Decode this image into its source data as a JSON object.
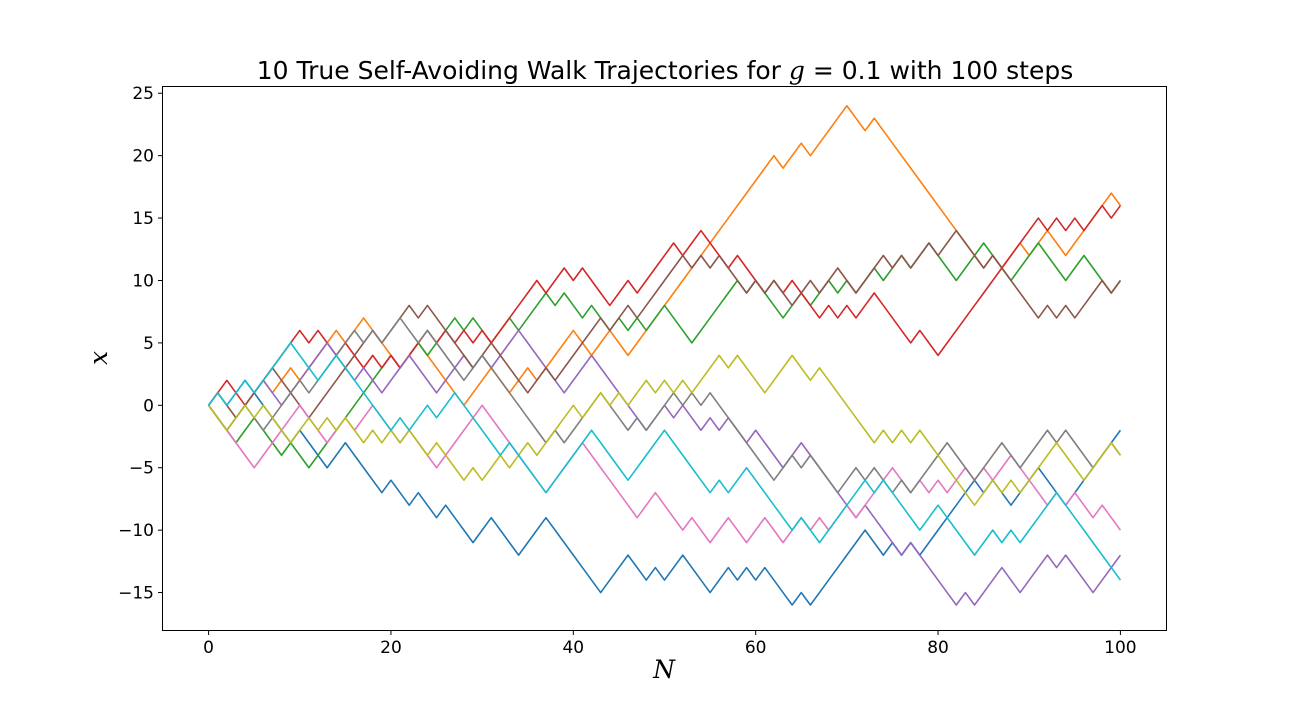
{
  "chart_data": {
    "type": "line",
    "title_prefix": "10 True Self-Avoiding Walk Trajectories for ",
    "title_symbol": "g",
    "title_suffix": " = 0.1 with 100 steps",
    "xlabel": "N",
    "ylabel": "x",
    "xlim": [
      -5,
      105
    ],
    "ylim": [
      -18,
      25.5
    ],
    "xticks": [
      0,
      20,
      40,
      60,
      80,
      100
    ],
    "yticks": [
      -15,
      -10,
      -5,
      0,
      5,
      10,
      15,
      20,
      25
    ],
    "grid": false,
    "legend": "none",
    "x": [
      0,
      1,
      2,
      3,
      4,
      5,
      6,
      7,
      8,
      9,
      10,
      11,
      12,
      13,
      14,
      15,
      16,
      17,
      18,
      19,
      20,
      21,
      22,
      23,
      24,
      25,
      26,
      27,
      28,
      29,
      30,
      31,
      32,
      33,
      34,
      35,
      36,
      37,
      38,
      39,
      40,
      41,
      42,
      43,
      44,
      45,
      46,
      47,
      48,
      49,
      50,
      51,
      52,
      53,
      54,
      55,
      56,
      57,
      58,
      59,
      60,
      61,
      62,
      63,
      64,
      65,
      66,
      67,
      68,
      69,
      70,
      71,
      72,
      73,
      74,
      75,
      76,
      77,
      78,
      79,
      80,
      81,
      82,
      83,
      84,
      85,
      86,
      87,
      88,
      89,
      90,
      91,
      92,
      93,
      94,
      95,
      96,
      97,
      98,
      99,
      100
    ],
    "series": [
      {
        "color": "#1f77b4",
        "values": [
          0,
          1,
          0,
          1,
          2,
          1,
          0,
          -1,
          -2,
          -3,
          -2,
          -3,
          -4,
          -5,
          -4,
          -3,
          -4,
          -5,
          -6,
          -7,
          -6,
          -7,
          -8,
          -7,
          -8,
          -9,
          -8,
          -9,
          -10,
          -11,
          -10,
          -9,
          -10,
          -11,
          -12,
          -11,
          -10,
          -9,
          -10,
          -11,
          -12,
          -13,
          -14,
          -15,
          -14,
          -13,
          -12,
          -13,
          -14,
          -13,
          -14,
          -13,
          -12,
          -13,
          -14,
          -15,
          -14,
          -13,
          -14,
          -13,
          -14,
          -13,
          -14,
          -15,
          -16,
          -15,
          -16,
          -15,
          -14,
          -13,
          -12,
          -11,
          -10,
          -11,
          -12,
          -11,
          -12,
          -11,
          -12,
          -11,
          -10,
          -9,
          -8,
          -7,
          -6,
          -7,
          -6,
          -7,
          -8,
          -7,
          -6,
          -5,
          -6,
          -7,
          -8,
          -7,
          -6,
          -5,
          -4,
          -3,
          -2
        ]
      },
      {
        "color": "#ff7f0e",
        "values": [
          0,
          1,
          0,
          -1,
          0,
          1,
          2,
          1,
          2,
          3,
          2,
          3,
          4,
          5,
          6,
          5,
          6,
          7,
          6,
          5,
          4,
          3,
          4,
          5,
          4,
          3,
          2,
          1,
          0,
          1,
          2,
          3,
          2,
          1,
          2,
          3,
          2,
          3,
          4,
          5,
          6,
          5,
          4,
          5,
          6,
          5,
          4,
          5,
          6,
          7,
          8,
          9,
          10,
          11,
          12,
          13,
          14,
          15,
          16,
          17,
          18,
          19,
          20,
          19,
          20,
          21,
          20,
          21,
          22,
          23,
          24,
          23,
          22,
          23,
          22,
          21,
          20,
          19,
          18,
          17,
          16,
          15,
          14,
          13,
          12,
          11,
          12,
          11,
          12,
          13,
          12,
          13,
          14,
          13,
          12,
          13,
          14,
          15,
          16,
          17,
          16
        ]
      },
      {
        "color": "#2ca02c",
        "values": [
          0,
          -1,
          -2,
          -3,
          -2,
          -1,
          -2,
          -3,
          -4,
          -3,
          -4,
          -5,
          -4,
          -3,
          -2,
          -1,
          0,
          1,
          2,
          3,
          4,
          3,
          4,
          5,
          4,
          5,
          6,
          7,
          6,
          7,
          6,
          5,
          6,
          7,
          6,
          7,
          8,
          9,
          8,
          9,
          8,
          7,
          8,
          7,
          6,
          7,
          6,
          7,
          6,
          7,
          8,
          7,
          6,
          5,
          6,
          7,
          8,
          9,
          10,
          9,
          10,
          9,
          8,
          7,
          8,
          9,
          8,
          9,
          10,
          9,
          10,
          9,
          10,
          11,
          10,
          11,
          12,
          11,
          12,
          13,
          12,
          11,
          10,
          11,
          12,
          13,
          12,
          11,
          10,
          11,
          12,
          13,
          12,
          11,
          10,
          11,
          12,
          11,
          10,
          9,
          10
        ]
      },
      {
        "color": "#d62728",
        "values": [
          0,
          1,
          2,
          1,
          0,
          1,
          2,
          3,
          4,
          5,
          6,
          5,
          6,
          5,
          4,
          5,
          4,
          3,
          4,
          3,
          4,
          3,
          4,
          5,
          6,
          5,
          6,
          5,
          6,
          5,
          6,
          5,
          6,
          7,
          8,
          9,
          10,
          9,
          10,
          11,
          10,
          11,
          10,
          9,
          8,
          9,
          10,
          9,
          10,
          11,
          12,
          13,
          12,
          13,
          14,
          13,
          12,
          11,
          12,
          11,
          10,
          9,
          10,
          9,
          10,
          9,
          8,
          7,
          8,
          7,
          8,
          7,
          8,
          9,
          8,
          7,
          6,
          5,
          6,
          5,
          4,
          5,
          6,
          7,
          8,
          9,
          10,
          11,
          12,
          13,
          14,
          15,
          14,
          15,
          14,
          15,
          14,
          15,
          16,
          15,
          16
        ]
      },
      {
        "color": "#9467bd",
        "values": [
          0,
          -1,
          -2,
          -1,
          0,
          1,
          2,
          1,
          0,
          1,
          2,
          3,
          4,
          5,
          4,
          3,
          2,
          3,
          2,
          1,
          2,
          3,
          4,
          3,
          2,
          1,
          2,
          3,
          4,
          3,
          4,
          3,
          4,
          5,
          6,
          5,
          4,
          3,
          2,
          1,
          2,
          3,
          4,
          3,
          2,
          1,
          0,
          -1,
          -2,
          -1,
          0,
          -1,
          0,
          -1,
          -2,
          -1,
          -2,
          -1,
          -2,
          -3,
          -2,
          -3,
          -4,
          -5,
          -4,
          -3,
          -4,
          -5,
          -6,
          -7,
          -8,
          -9,
          -8,
          -9,
          -10,
          -11,
          -12,
          -11,
          -12,
          -13,
          -14,
          -15,
          -16,
          -15,
          -16,
          -15,
          -14,
          -13,
          -14,
          -15,
          -14,
          -13,
          -12,
          -13,
          -12,
          -13,
          -14,
          -15,
          -14,
          -13,
          -12
        ]
      },
      {
        "color": "#8c564b",
        "values": [
          0,
          1,
          0,
          -1,
          0,
          1,
          2,
          3,
          2,
          1,
          0,
          -1,
          0,
          1,
          2,
          3,
          4,
          5,
          6,
          5,
          6,
          7,
          8,
          7,
          8,
          7,
          6,
          5,
          4,
          3,
          4,
          5,
          4,
          3,
          2,
          1,
          2,
          3,
          2,
          3,
          4,
          5,
          6,
          7,
          6,
          7,
          8,
          7,
          8,
          9,
          10,
          11,
          12,
          11,
          12,
          11,
          12,
          11,
          10,
          9,
          10,
          9,
          10,
          9,
          8,
          9,
          10,
          9,
          10,
          11,
          10,
          9,
          10,
          11,
          12,
          11,
          12,
          11,
          12,
          13,
          12,
          13,
          14,
          13,
          12,
          11,
          12,
          11,
          10,
          9,
          8,
          7,
          8,
          7,
          8,
          7,
          8,
          9,
          10,
          9,
          10
        ]
      },
      {
        "color": "#e377c2",
        "values": [
          0,
          -1,
          -2,
          -3,
          -4,
          -5,
          -4,
          -3,
          -2,
          -1,
          0,
          -1,
          -2,
          -3,
          -2,
          -1,
          -2,
          -1,
          0,
          -1,
          -2,
          -3,
          -2,
          -3,
          -4,
          -5,
          -4,
          -3,
          -2,
          -1,
          0,
          -1,
          -2,
          -3,
          -4,
          -5,
          -6,
          -7,
          -6,
          -5,
          -4,
          -3,
          -4,
          -5,
          -6,
          -7,
          -8,
          -9,
          -8,
          -7,
          -8,
          -9,
          -10,
          -9,
          -10,
          -11,
          -10,
          -9,
          -10,
          -11,
          -10,
          -9,
          -10,
          -11,
          -10,
          -9,
          -10,
          -9,
          -10,
          -9,
          -8,
          -9,
          -8,
          -7,
          -6,
          -5,
          -6,
          -7,
          -6,
          -7,
          -6,
          -7,
          -6,
          -5,
          -6,
          -5,
          -6,
          -5,
          -4,
          -5,
          -6,
          -7,
          -8,
          -7,
          -8,
          -7,
          -8,
          -9,
          -8,
          -9,
          -10
        ]
      },
      {
        "color": "#7f7f7f",
        "values": [
          0,
          -1,
          -2,
          -1,
          0,
          -1,
          -2,
          -1,
          0,
          1,
          2,
          1,
          2,
          3,
          4,
          5,
          6,
          5,
          6,
          5,
          6,
          7,
          6,
          5,
          6,
          5,
          4,
          3,
          2,
          3,
          4,
          3,
          2,
          1,
          0,
          -1,
          -2,
          -3,
          -2,
          -3,
          -2,
          -1,
          0,
          1,
          0,
          -1,
          -2,
          -1,
          -2,
          -1,
          0,
          1,
          0,
          1,
          0,
          1,
          0,
          -1,
          -2,
          -3,
          -4,
          -5,
          -6,
          -5,
          -4,
          -5,
          -4,
          -5,
          -6,
          -7,
          -6,
          -5,
          -6,
          -5,
          -6,
          -7,
          -6,
          -7,
          -6,
          -5,
          -4,
          -3,
          -4,
          -5,
          -6,
          -5,
          -4,
          -3,
          -4,
          -5,
          -4,
          -3,
          -2,
          -3,
          -2,
          -3,
          -4,
          -5,
          -4,
          -3,
          -4
        ]
      },
      {
        "color": "#bcbd22",
        "values": [
          0,
          -1,
          -2,
          -1,
          0,
          -1,
          0,
          -1,
          -2,
          -3,
          -2,
          -1,
          -2,
          -1,
          -2,
          -1,
          -2,
          -3,
          -2,
          -3,
          -2,
          -3,
          -2,
          -3,
          -4,
          -3,
          -4,
          -5,
          -6,
          -5,
          -6,
          -5,
          -4,
          -5,
          -4,
          -3,
          -4,
          -3,
          -2,
          -1,
          0,
          -1,
          0,
          1,
          0,
          1,
          0,
          1,
          2,
          1,
          2,
          1,
          2,
          1,
          2,
          3,
          4,
          3,
          4,
          3,
          2,
          1,
          2,
          3,
          4,
          3,
          2,
          3,
          2,
          1,
          0,
          -1,
          -2,
          -3,
          -2,
          -3,
          -2,
          -3,
          -2,
          -3,
          -4,
          -5,
          -6,
          -7,
          -8,
          -7,
          -6,
          -7,
          -6,
          -7,
          -6,
          -5,
          -4,
          -3,
          -4,
          -5,
          -6,
          -5,
          -4,
          -3,
          -4
        ]
      },
      {
        "color": "#17becf",
        "values": [
          0,
          1,
          0,
          1,
          2,
          1,
          2,
          3,
          4,
          5,
          4,
          3,
          2,
          3,
          4,
          3,
          2,
          1,
          0,
          -1,
          -2,
          -1,
          -2,
          -1,
          0,
          -1,
          0,
          1,
          0,
          -1,
          -2,
          -3,
          -4,
          -3,
          -4,
          -5,
          -6,
          -7,
          -6,
          -5,
          -4,
          -3,
          -2,
          -3,
          -4,
          -5,
          -6,
          -5,
          -4,
          -3,
          -2,
          -3,
          -4,
          -5,
          -6,
          -7,
          -6,
          -7,
          -6,
          -5,
          -6,
          -7,
          -8,
          -9,
          -10,
          -9,
          -10,
          -11,
          -10,
          -9,
          -8,
          -7,
          -6,
          -7,
          -6,
          -7,
          -8,
          -9,
          -10,
          -9,
          -8,
          -9,
          -10,
          -11,
          -12,
          -11,
          -10,
          -11,
          -10,
          -11,
          -10,
          -9,
          -8,
          -7,
          -8,
          -9,
          -10,
          -11,
          -12,
          -13,
          -14
        ]
      }
    ]
  }
}
